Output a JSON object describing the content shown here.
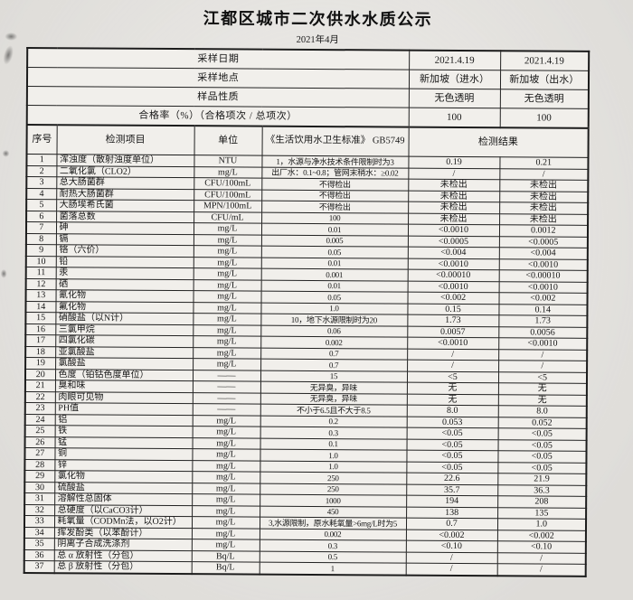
{
  "page": {
    "title": "江都区城市二次供水水质公示",
    "subtitle": "2021年4月"
  },
  "colors": {
    "paper": "#e7e5e1",
    "table_paper": "#f1efeb",
    "ink": "#161616",
    "border": "#222222"
  },
  "info_rows": [
    {
      "label": "采样日期",
      "col1": "2021.4.19",
      "col2": "2021.4.19"
    },
    {
      "label": "采样地点",
      "col1": "新加坡（进水）",
      "col2": "新加坡（出水）"
    },
    {
      "label": "样品性质",
      "col1": "无色透明",
      "col2": "无色透明"
    },
    {
      "label": "合格率（%）（合格项次 / 总项次）",
      "col1": "100",
      "col2": "100"
    }
  ],
  "table": {
    "headers": {
      "no": "序号",
      "item": "检测项目",
      "unit": "单位",
      "standard": "《生活饮用水卫生标准》 GB5749",
      "result": "检测结果"
    },
    "rows": [
      {
        "no": "1",
        "item": "浑浊度（散射浊度单位）",
        "unit": "NTU",
        "standard": "1，水源与净水技术条件限制时为3",
        "r1": "0.19",
        "r2": "0.21"
      },
      {
        "no": "2",
        "item": "二氧化氯（CLO2）",
        "unit": "mg/L",
        "standard": "出厂水：0.1~0.8；管网末稍水：≥0.02",
        "r1": "/",
        "r2": "/"
      },
      {
        "no": "3",
        "item": "总大肠菌群",
        "unit": "CFU/100mL",
        "standard": "不得检出",
        "r1": "未检出",
        "r2": "未检出"
      },
      {
        "no": "4",
        "item": "耐热大肠菌群",
        "unit": "CFU/100mL",
        "standard": "不得检出",
        "r1": "未检出",
        "r2": "未检出"
      },
      {
        "no": "5",
        "item": "大肠埃希氏菌",
        "unit": "MPN/100mL",
        "standard": "不得检出",
        "r1": "未检出",
        "r2": "未检出"
      },
      {
        "no": "6",
        "item": "菌落总数",
        "unit": "CFU/mL",
        "standard": "100",
        "r1": "未检出",
        "r2": "未检出"
      },
      {
        "no": "7",
        "item": "砷",
        "unit": "mg/L",
        "standard": "0.01",
        "r1": "<0.0010",
        "r2": "0.0012"
      },
      {
        "no": "8",
        "item": "镉",
        "unit": "mg/L",
        "standard": "0.005",
        "r1": "<0.0005",
        "r2": "<0.0005"
      },
      {
        "no": "9",
        "item": "铬（六价）",
        "unit": "mg/L",
        "standard": "0.05",
        "r1": "<0.004",
        "r2": "<0.004"
      },
      {
        "no": "10",
        "item": "铅",
        "unit": "mg/L",
        "standard": "0.01",
        "r1": "<0.0010",
        "r2": "<0.0010"
      },
      {
        "no": "11",
        "item": "汞",
        "unit": "mg/L",
        "standard": "0.001",
        "r1": "<0.00010",
        "r2": "<0.00010"
      },
      {
        "no": "12",
        "item": "硒",
        "unit": "mg/L",
        "standard": "0.01",
        "r1": "<0.0010",
        "r2": "<0.0010"
      },
      {
        "no": "13",
        "item": "氰化物",
        "unit": "mg/L",
        "standard": "0.05",
        "r1": "<0.002",
        "r2": "<0.002"
      },
      {
        "no": "14",
        "item": "氟化物",
        "unit": "mg/L",
        "standard": "1.0",
        "r1": "0.15",
        "r2": "0.14"
      },
      {
        "no": "15",
        "item": "硝酸盐（以N计）",
        "unit": "mg/L",
        "standard": "10，地下水源限制时为20",
        "r1": "1.73",
        "r2": "1.73"
      },
      {
        "no": "16",
        "item": "三氯甲烷",
        "unit": "mg/L",
        "standard": "0.06",
        "r1": "0.0057",
        "r2": "0.0056"
      },
      {
        "no": "17",
        "item": "四氯化碳",
        "unit": "mg/L",
        "standard": "0.002",
        "r1": "<0.0010",
        "r2": "<0.0010"
      },
      {
        "no": "18",
        "item": "亚氯酸盐",
        "unit": "mg/L",
        "standard": "0.7",
        "r1": "/",
        "r2": "/"
      },
      {
        "no": "19",
        "item": "氯酸盐",
        "unit": "mg/L",
        "standard": "0.7",
        "r1": "/",
        "r2": "/"
      },
      {
        "no": "20",
        "item": "色度（铂钴色度单位）",
        "unit": "——",
        "standard": "15",
        "r1": "<5",
        "r2": "<5"
      },
      {
        "no": "21",
        "item": "臭和味",
        "unit": "——",
        "standard": "无异臭，异味",
        "r1": "无",
        "r2": "无"
      },
      {
        "no": "22",
        "item": "肉眼可见物",
        "unit": "——",
        "standard": "无异臭，异味",
        "r1": "无",
        "r2": "无"
      },
      {
        "no": "23",
        "item": "PH值",
        "unit": "——",
        "standard": "不小于6.5且不大于8.5",
        "r1": "8.0",
        "r2": "8.0"
      },
      {
        "no": "24",
        "item": "铝",
        "unit": "mg/L",
        "standard": "0.2",
        "r1": "0.053",
        "r2": "0.052"
      },
      {
        "no": "25",
        "item": "铁",
        "unit": "mg/L",
        "standard": "0.3",
        "r1": "<0.05",
        "r2": "<0.05"
      },
      {
        "no": "26",
        "item": "锰",
        "unit": "mg/L",
        "standard": "0.1",
        "r1": "<0.05",
        "r2": "<0.05"
      },
      {
        "no": "27",
        "item": "铜",
        "unit": "mg/L",
        "standard": "1.0",
        "r1": "<0.05",
        "r2": "<0.05"
      },
      {
        "no": "28",
        "item": "锌",
        "unit": "mg/L",
        "standard": "1.0",
        "r1": "<0.05",
        "r2": "<0.05"
      },
      {
        "no": "29",
        "item": "氯化物",
        "unit": "mg/L",
        "standard": "250",
        "r1": "22.6",
        "r2": "21.9"
      },
      {
        "no": "30",
        "item": "硫酸盐",
        "unit": "mg/L",
        "standard": "250",
        "r1": "35.7",
        "r2": "36.3"
      },
      {
        "no": "31",
        "item": "溶解性总固体",
        "unit": "mg/L",
        "standard": "1000",
        "r1": "194",
        "r2": "208"
      },
      {
        "no": "32",
        "item": "总硬度（以CaCO3计）",
        "unit": "mg/L",
        "standard": "450",
        "r1": "138",
        "r2": "135"
      },
      {
        "no": "33",
        "item": "耗氧量（CODMn法，以O2计）",
        "unit": "mg/L",
        "standard": "3,水源限制，原水耗氧量>6mg/L时为5",
        "r1": "0.7",
        "r2": "1.0"
      },
      {
        "no": "34",
        "item": "挥发酚类（以苯酚计）",
        "unit": "mg/L",
        "standard": "0.002",
        "r1": "<0.002",
        "r2": "<0.002"
      },
      {
        "no": "35",
        "item": "阴离子合成洗涤剂",
        "unit": "mg/L",
        "standard": "0.3",
        "r1": "<0.10",
        "r2": "<0.10"
      },
      {
        "no": "36",
        "item": "总 α 放射性（分包）",
        "unit": "Bq/L",
        "standard": "0.5",
        "r1": "/",
        "r2": "/"
      },
      {
        "no": "37",
        "item": "总 β 放射性（分包）",
        "unit": "Bq/L",
        "standard": "1",
        "r1": "/",
        "r2": "/"
      }
    ]
  }
}
